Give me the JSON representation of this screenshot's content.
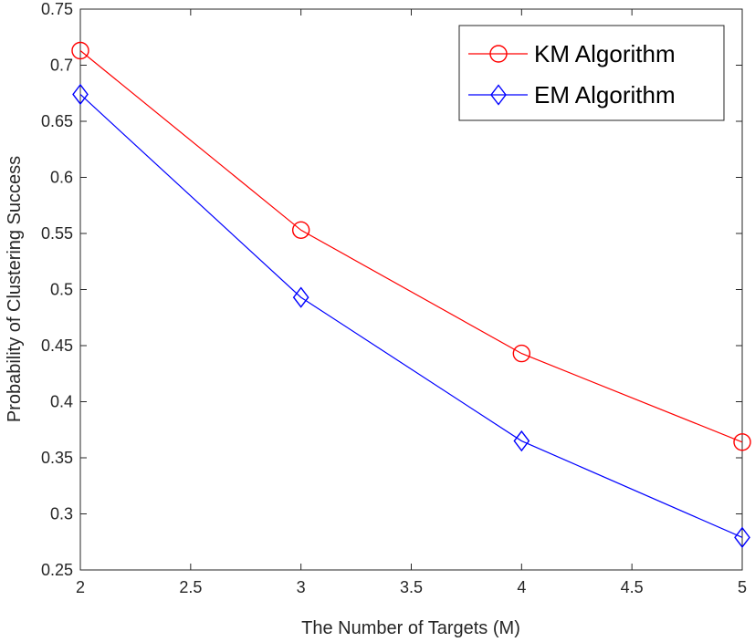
{
  "chart_data": {
    "type": "line",
    "xlabel": "The Number of Targets (M)",
    "ylabel": "Probability of Clustering Success",
    "xlim": [
      2,
      5
    ],
    "ylim": [
      0.25,
      0.75
    ],
    "xticks": [
      2,
      2.5,
      3,
      3.5,
      4,
      4.5,
      5
    ],
    "xtick_labels": [
      "2",
      "2.5",
      "3",
      "3.5",
      "4",
      "4.5",
      "5"
    ],
    "yticks": [
      0.25,
      0.3,
      0.35,
      0.4,
      0.45,
      0.5,
      0.55,
      0.6,
      0.65,
      0.7,
      0.75
    ],
    "ytick_labels": [
      "0.25",
      "0.3",
      "0.35",
      "0.4",
      "0.45",
      "0.5",
      "0.55",
      "0.6",
      "0.65",
      "0.7",
      "0.75"
    ],
    "grid": false,
    "legend_position": "top-right",
    "series": [
      {
        "name": "KM Algorithm",
        "color": "#ff0000",
        "marker": "circle",
        "x": [
          2,
          3,
          4,
          5
        ],
        "y": [
          0.713,
          0.553,
          0.443,
          0.364
        ]
      },
      {
        "name": "EM Algorithm",
        "color": "#0000ff",
        "marker": "diamond",
        "x": [
          2,
          3,
          4,
          5
        ],
        "y": [
          0.674,
          0.493,
          0.365,
          0.279
        ]
      }
    ]
  }
}
